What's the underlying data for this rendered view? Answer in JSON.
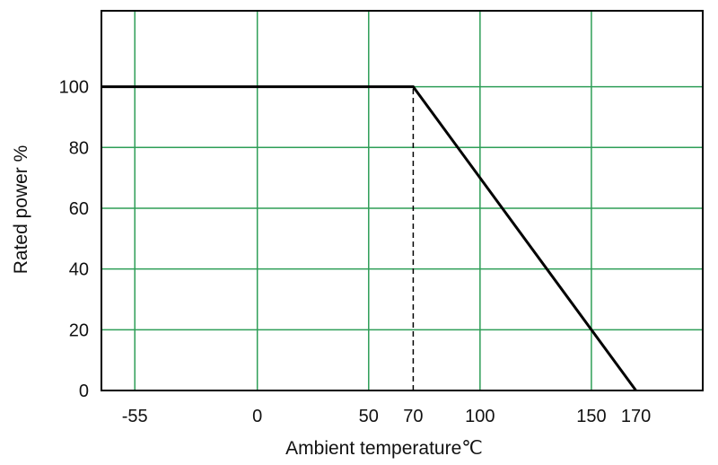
{
  "chart_data": {
    "type": "line",
    "title": "",
    "xlabel": "Ambient temperature℃",
    "ylabel": "Rated power %",
    "xlim": [
      -70,
      200
    ],
    "ylim": [
      0,
      125
    ],
    "x_gridlines": [
      -55,
      0,
      50,
      100,
      150
    ],
    "y_gridlines": [
      20,
      40,
      60,
      80,
      100
    ],
    "x_tick_labels": [
      {
        "value": -55,
        "label": "-55"
      },
      {
        "value": 0,
        "label": "0"
      },
      {
        "value": 50,
        "label": "50"
      },
      {
        "value": 70,
        "label": "70"
      },
      {
        "value": 100,
        "label": "100"
      },
      {
        "value": 150,
        "label": "150"
      },
      {
        "value": 170,
        "label": "170"
      }
    ],
    "y_tick_labels": [
      {
        "value": 0,
        "label": "0"
      },
      {
        "value": 20,
        "label": "20"
      },
      {
        "value": 40,
        "label": "40"
      },
      {
        "value": 60,
        "label": "60"
      },
      {
        "value": 80,
        "label": "80"
      },
      {
        "value": 100,
        "label": "100"
      }
    ],
    "series": [
      {
        "x": [
          -70,
          70,
          170
        ],
        "y": [
          100,
          100,
          0
        ]
      }
    ],
    "annotations": [
      {
        "type": "dashed-vertical",
        "x": 70,
        "y_from": 0,
        "y_to": 100
      }
    ],
    "grid": true,
    "legend": "none",
    "colors": {
      "grid": "#2e9e57",
      "line": "#000000",
      "frame": "#000000"
    }
  }
}
